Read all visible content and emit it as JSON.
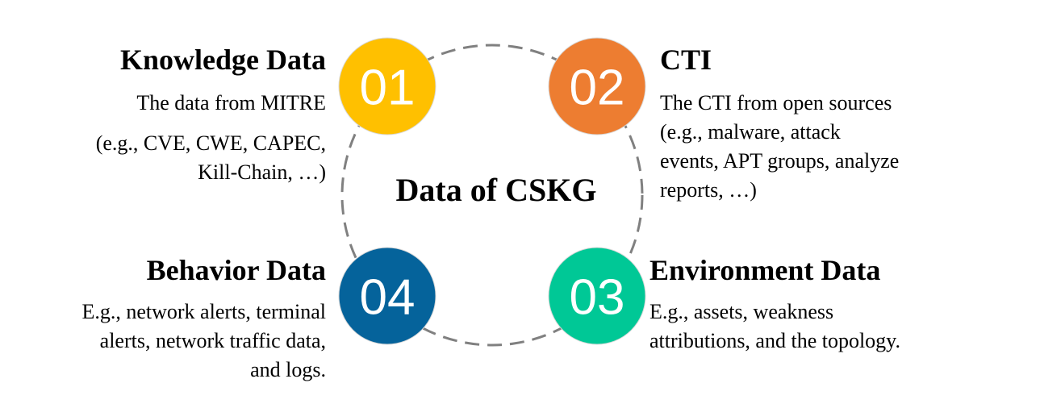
{
  "center": {
    "title": "Data of CSKG"
  },
  "items": [
    {
      "number": "01",
      "color": "#FFC000",
      "title": "Knowledge Data",
      "lines": [
        "The data from MITRE",
        "(e.g., CVE, CWE, CAPEC,",
        "Kill-Chain, …)"
      ]
    },
    {
      "number": "02",
      "color": "#ED7D31",
      "title": "CTI",
      "lines": [
        "The CTI from open sources",
        "(e.g., malware, attack",
        "events, APT groups, analyze",
        "reports, …)"
      ]
    },
    {
      "number": "03",
      "color": "#00C896",
      "title": "Environment Data",
      "lines": [
        "E.g., assets, weakness",
        "attributions, and the topology."
      ]
    },
    {
      "number": "04",
      "color": "#05639B",
      "title": "Behavior Data",
      "lines": [
        "E.g., network alerts, terminal",
        "alerts, network traffic data,",
        "and logs."
      ]
    }
  ],
  "colors": {
    "dashed_ring": "#808080",
    "text": "#000000",
    "badge_text": "#FFFFFF"
  }
}
